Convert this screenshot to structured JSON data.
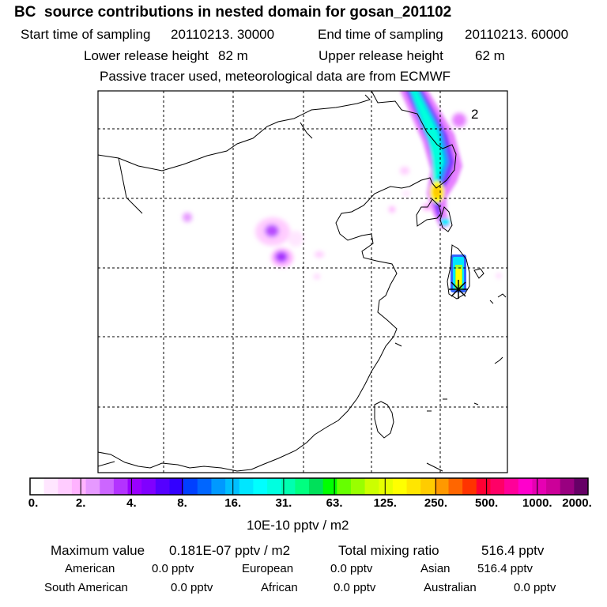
{
  "header": {
    "title": "BC  source contributions in nested domain for gosan_201102",
    "start_label": "Start time of sampling",
    "start_value": "20110213. 30000",
    "end_label": "End time of sampling",
    "end_value": "20110213. 60000",
    "lower_label": "Lower release height",
    "lower_value": "82 m",
    "upper_label": "Upper release height",
    "upper_value": "62 m",
    "note": "Passive tracer used, meteorological data are from ECMWF"
  },
  "map": {
    "receptor_marker": "receptor-star-icon",
    "plume_label": "2"
  },
  "colorbar": {
    "ticks": [
      "0.",
      "2.",
      "4.",
      "8.",
      "16.",
      "31.",
      "63.",
      "125.",
      "250.",
      "500.",
      "1000.",
      "2000."
    ],
    "units": "10E-10 pptv / m2",
    "colors": [
      "#ffffff",
      "#ffe6ff",
      "#ffccff",
      "#ffb3ff",
      "#e699ff",
      "#cc66ff",
      "#b333ff",
      "#9900ff",
      "#8000ff",
      "#5500ff",
      "#3300ff",
      "#0040ff",
      "#0066ff",
      "#0099ff",
      "#00bfff",
      "#00e6ff",
      "#00ffff",
      "#00ffe0",
      "#00ffb0",
      "#00ff80",
      "#00e05a",
      "#00ff00",
      "#66ff00",
      "#99ff00",
      "#ccff00",
      "#e6ff00",
      "#ffff00",
      "#ffe600",
      "#ffcc00",
      "#ff9900",
      "#ff6600",
      "#ff3300",
      "#ff0033",
      "#ff0066",
      "#ff0099",
      "#ff00cc",
      "#e600b3",
      "#cc0099",
      "#990080",
      "#660066"
    ]
  },
  "stats": {
    "max_label": "Maximum value",
    "max_value": "0.181E-07 pptv / m2",
    "total_label": "Total mixing ratio",
    "total_value": "516.4 pptv",
    "regions": [
      {
        "name": "American",
        "value": "0.0 pptv"
      },
      {
        "name": "European",
        "value": "0.0 pptv"
      },
      {
        "name": "Asian",
        "value": "516.4 pptv"
      },
      {
        "name": "South American",
        "value": "0.0 pptv"
      },
      {
        "name": "African",
        "value": "0.0 pptv"
      },
      {
        "name": "Australian",
        "value": "0.0 pptv"
      }
    ]
  }
}
